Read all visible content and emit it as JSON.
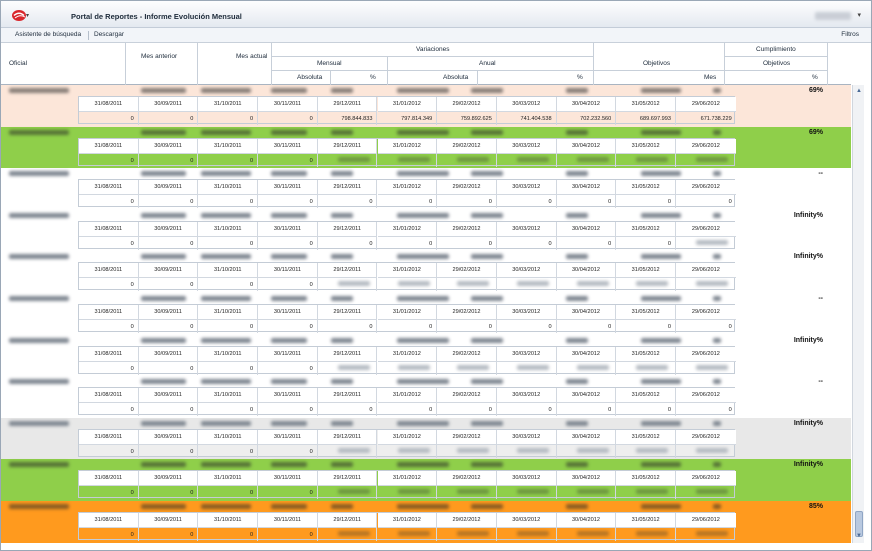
{
  "app": {
    "title": "Portal de Reportes - Informe Evolución Mensual",
    "menu_caret": "▾",
    "user_caret": "▾"
  },
  "toolbar": {
    "search_wizard": "Asistente de búsqueda",
    "download": "Descargar",
    "filters": "Filtros"
  },
  "columns": {
    "oficial": "Oficial",
    "mes_anterior": "Mes anterior",
    "mes_actual": "Mes actual",
    "variaciones": "Variaciones",
    "mensual": "Mensual",
    "anual": "Anual",
    "absoluta_m": "Absoluta",
    "pct_m": "%",
    "absoluta_a": "Absoluta",
    "pct_a": "%",
    "objetivos": "Objetivos",
    "mes": "Mes",
    "cumplimiento": "Cumplimiento",
    "cumpl_objetivos": "Objetivos",
    "cumpl_pct": "%"
  },
  "dates": [
    "31/08/2011",
    "30/09/2011",
    "31/10/2011",
    "30/11/2011",
    "29/12/2011",
    "31/01/2012",
    "29/02/2012",
    "30/03/2012",
    "30/04/2012",
    "31/05/2012",
    "29/06/2012"
  ],
  "rows": [
    {
      "pct": "69%",
      "bg": "#fce6d9",
      "inner_bg": "#fce6d9",
      "values": [
        "0",
        "0",
        "0",
        "0",
        "798.844.833",
        "797.814.349",
        "759.892.625",
        "741.404.538",
        "702.232.560",
        "689.697.993",
        "671.738.229"
      ]
    },
    {
      "pct": "69%",
      "bg": "#8fcf4a",
      "inner_bg": "#8fcf4a",
      "values": [
        "0",
        "0",
        "0",
        "0",
        "",
        "",
        "",
        "",
        "",
        "",
        ""
      ]
    },
    {
      "pct": "--",
      "bg": "#ffffff",
      "inner_bg": "#ffffff",
      "values": [
        "0",
        "0",
        "0",
        "0",
        "0",
        "0",
        "0",
        "0",
        "0",
        "0",
        "0"
      ]
    },
    {
      "pct": "Infinity%",
      "bg": "#ffffff",
      "inner_bg": "#ffffff",
      "values": [
        "0",
        "0",
        "0",
        "0",
        "0",
        "0",
        "0",
        "0",
        "0",
        "0",
        ""
      ]
    },
    {
      "pct": "Infinity%",
      "bg": "#ffffff",
      "inner_bg": "#ffffff",
      "values": [
        "0",
        "0",
        "0",
        "0",
        "",
        "",
        "",
        "",
        "",
        "",
        ""
      ]
    },
    {
      "pct": "--",
      "bg": "#ffffff",
      "inner_bg": "#ffffff",
      "values": [
        "0",
        "0",
        "0",
        "0",
        "0",
        "0",
        "0",
        "0",
        "0",
        "0",
        "0"
      ]
    },
    {
      "pct": "Infinity%",
      "bg": "#ffffff",
      "inner_bg": "#ffffff",
      "values": [
        "0",
        "0",
        "0",
        "0",
        "",
        "",
        "",
        "",
        "",
        "",
        ""
      ]
    },
    {
      "pct": "--",
      "bg": "#ffffff",
      "inner_bg": "#ffffff",
      "values": [
        "0",
        "0",
        "0",
        "0",
        "0",
        "0",
        "0",
        "0",
        "0",
        "0",
        "0"
      ]
    },
    {
      "pct": "Infinity%",
      "bg": "#e8e8e8",
      "inner_bg": "#eeeeee",
      "values": [
        "0",
        "0",
        "0",
        "0",
        "",
        "",
        "",
        "",
        "",
        "",
        ""
      ]
    },
    {
      "pct": "Infinity%",
      "bg": "#8fcf4a",
      "inner_bg": "#8fcf4a",
      "values": [
        "0",
        "0",
        "0",
        "0",
        "",
        "",
        "",
        "",
        "",
        "",
        ""
      ]
    },
    {
      "pct": "85%",
      "bg": "#ff9a1e",
      "inner_bg": "#ff9a1e",
      "values": [
        "0",
        "0",
        "0",
        "0",
        "",
        "",
        "",
        "",
        "",
        "",
        ""
      ]
    }
  ],
  "scrollbar": {
    "up": "▲",
    "down": "▼"
  }
}
